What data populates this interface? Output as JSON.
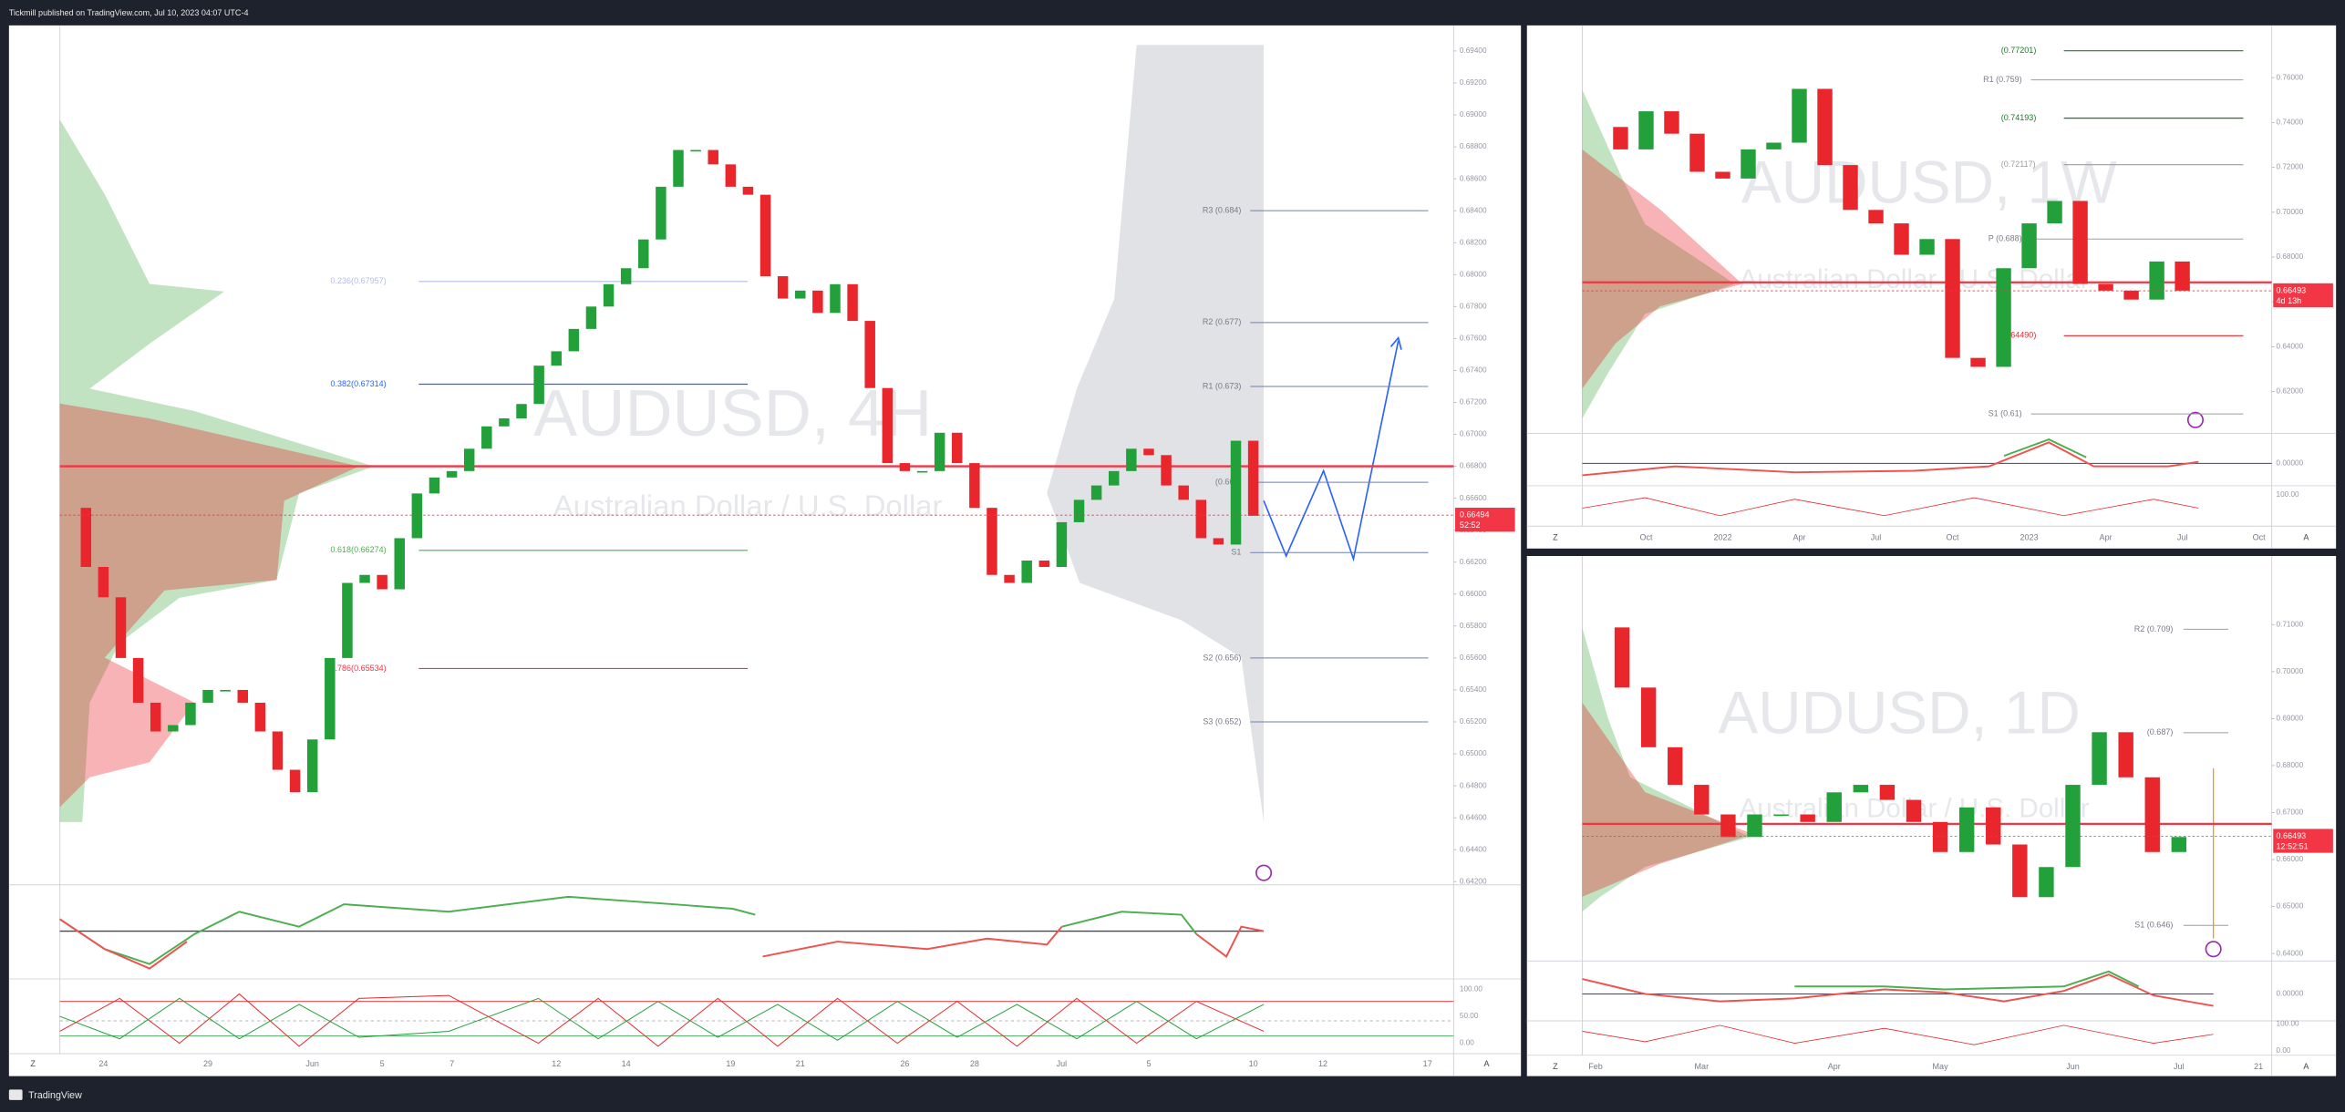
{
  "header": {
    "title": "Tickmill published on TradingView.com, Jul 10, 2023 04:07 UTC-4"
  },
  "footer": {
    "brand": "TradingView"
  },
  "controls": {
    "zoom": "Z",
    "auto": "A"
  },
  "chart_data": [
    {
      "type": "candlestick",
      "title": "AUDUSD, 4H",
      "subtitle": "Australian Dollar / U.S. Dollar",
      "up_color": "#22a03a",
      "down_color": "#e8262c",
      "categories": [
        null,
        null,
        "24",
        null,
        null,
        null,
        null,
        null,
        "29",
        null,
        null,
        null,
        null,
        null,
        "Jun",
        null,
        null,
        null,
        "5",
        null,
        null,
        null,
        "7",
        null,
        null,
        null,
        null,
        null,
        "12",
        null,
        null,
        null,
        "14",
        null,
        null,
        null,
        null,
        null,
        "19",
        null,
        null,
        null,
        "21",
        null,
        null,
        null,
        null,
        null,
        "26",
        null,
        null,
        null,
        "28",
        null,
        null,
        null,
        null,
        "Jul",
        null,
        null,
        null,
        null,
        "5",
        null,
        null,
        null,
        null,
        null,
        "10",
        null,
        null,
        null,
        "12",
        null,
        null,
        null,
        null,
        null,
        "17",
        null
      ],
      "values": [
        0.6654,
        0.6617,
        0.6598,
        0.656,
        0.6532,
        0.6514,
        0.6518,
        0.6532,
        0.654,
        0.654,
        0.6532,
        0.6514,
        0.649,
        0.6476,
        0.6509,
        0.656,
        0.6607,
        0.6612,
        0.6603,
        0.6635,
        0.6663,
        0.6673,
        0.6677,
        0.6691,
        0.6705,
        0.671,
        0.6719,
        0.6743,
        0.6752,
        0.6766,
        0.678,
        0.6794,
        0.6804,
        0.6822,
        0.6855,
        0.6878,
        0.6878,
        0.6869,
        0.6855,
        0.685,
        0.6799,
        0.6785,
        0.679,
        0.6776,
        0.6794,
        0.6771,
        0.6729,
        0.6682,
        0.6677,
        0.6677,
        0.6701,
        0.6682,
        0.6654,
        0.6612,
        0.6607,
        0.6621,
        0.6617,
        0.6645,
        0.6659,
        0.6668,
        0.6677,
        0.6691,
        0.6687,
        0.6668,
        0.6659,
        0.6635,
        0.6631,
        0.6696,
        0.6649,
        null,
        null,
        null,
        null,
        null,
        null,
        null,
        null,
        null,
        null,
        null
      ],
      "ylim": [
        0.6418,
        0.6956
      ],
      "yticks": [
        {
          "value": 0.642,
          "label": "0.64200"
        },
        {
          "value": 0.644,
          "label": "0.64400"
        },
        {
          "value": 0.646,
          "label": "0.64600"
        },
        {
          "value": 0.648,
          "label": "0.64800"
        },
        {
          "value": 0.65,
          "label": "0.65000"
        },
        {
          "value": 0.652,
          "label": "0.65200"
        },
        {
          "value": 0.654,
          "label": "0.65400"
        },
        {
          "value": 0.656,
          "label": "0.65600"
        },
        {
          "value": 0.658,
          "label": "0.65800"
        },
        {
          "value": 0.66,
          "label": "0.66000"
        },
        {
          "value": 0.662,
          "label": "0.66200"
        },
        {
          "value": 0.664,
          "label": "0.66400"
        },
        {
          "value": 0.666,
          "label": "0.66600"
        },
        {
          "value": 0.668,
          "label": "0.66800"
        },
        {
          "value": 0.67,
          "label": "0.67000"
        },
        {
          "value": 0.672,
          "label": "0.67200"
        },
        {
          "value": 0.674,
          "label": "0.67400"
        },
        {
          "value": 0.676,
          "label": "0.67600"
        },
        {
          "value": 0.678,
          "label": "0.67800"
        },
        {
          "value": 0.68,
          "label": "0.68000"
        },
        {
          "value": 0.682,
          "label": "0.68200"
        },
        {
          "value": 0.684,
          "label": "0.68400"
        },
        {
          "value": 0.686,
          "label": "0.68600"
        },
        {
          "value": 0.688,
          "label": "0.68800"
        },
        {
          "value": 0.69,
          "label": "0.69000"
        },
        {
          "value": 0.692,
          "label": "0.69200"
        },
        {
          "value": 0.694,
          "label": "0.69400"
        }
      ],
      "grid": false,
      "pivots": [
        {
          "label": "R3 (0.684)",
          "value": 0.684,
          "color": "#6f7fb0"
        },
        {
          "label": "R2 (0.677)",
          "value": 0.677,
          "color": "#6f7fb0"
        },
        {
          "label": "R1 (0.673)",
          "value": 0.673,
          "color": "#6f7fb0"
        },
        {
          "label": "(0.667)",
          "value": 0.667,
          "color": "#6f7fb0"
        },
        {
          "label": "S1",
          "value": 0.6626,
          "color": "#6f7fb0"
        },
        {
          "label": "S2 (0.656)",
          "value": 0.656,
          "color": "#6f7fb0"
        },
        {
          "label": "S3 (0.652)",
          "value": 0.652,
          "color": "#6f7fb0"
        }
      ],
      "fibs": [
        {
          "label": "0.236(0.67957)",
          "value": 0.67957,
          "color": "#b4bce6"
        },
        {
          "label": "0.382(0.67314)",
          "value": 0.67314,
          "color": "#2962ff"
        },
        {
          "label": "0.618(0.66274)",
          "value": 0.66274,
          "color": "#4caf50"
        },
        {
          "label": "0.786(0.65534)",
          "value": 0.65534,
          "color": "#f23645"
        }
      ],
      "hline": 0.668,
      "hline_color": "#f23645",
      "last_price": 0.66494,
      "countdown": "52:52",
      "indicator_labels": [
        "100.00",
        "50.00",
        "0.00"
      ]
    },
    {
      "type": "candlestick",
      "title": "AUDUSD, 1W",
      "subtitle": "Australian Dollar / U.S. Dollar",
      "up_color": "#22a03a",
      "down_color": "#e8262c",
      "categories": [
        null,
        null,
        "Oct",
        null,
        null,
        "2022",
        null,
        null,
        "Apr",
        null,
        null,
        "Jul",
        null,
        null,
        "Oct",
        null,
        null,
        "2023",
        null,
        null,
        "Apr",
        null,
        null,
        "Jul",
        null,
        null,
        "Oct"
      ],
      "values": [
        0.738,
        0.728,
        0.745,
        0.735,
        0.718,
        0.715,
        0.728,
        0.731,
        0.755,
        0.721,
        0.701,
        0.695,
        0.681,
        0.688,
        0.635,
        0.631,
        0.675,
        0.695,
        0.705,
        0.668,
        0.665,
        0.661,
        0.678,
        0.665,
        null,
        null,
        null
      ],
      "ylim": [
        0.6013,
        0.7833
      ],
      "yticks": [
        {
          "value": 0.62,
          "label": "0.62000"
        },
        {
          "value": 0.64,
          "label": "0.64000"
        },
        {
          "value": 0.66,
          "label": "0.66000"
        },
        {
          "value": 0.68,
          "label": "0.68000"
        },
        {
          "value": 0.7,
          "label": "0.70000"
        },
        {
          "value": 0.72,
          "label": "0.72000"
        },
        {
          "value": 0.74,
          "label": "0.74000"
        },
        {
          "value": 0.76,
          "label": "0.76000"
        }
      ],
      "grid": false,
      "pivots": [
        {
          "label": "R1 (0.759)",
          "value": 0.759,
          "color": "#9e9e9e"
        },
        {
          "label": "P (0.688)",
          "value": 0.688,
          "color": "#9e9e9e"
        },
        {
          "label": "S1 (0.61)",
          "value": 0.61,
          "color": "#9e9e9e"
        }
      ],
      "fibs": [
        {
          "label": "(0.77201)",
          "value": 0.77201,
          "color": "#1b7a2b"
        },
        {
          "label": "(0.74193)",
          "value": 0.74193,
          "color": "#1b7a2b"
        },
        {
          "label": "(0.72117)",
          "value": 0.72117,
          "color": "#9e9e9e"
        },
        {
          "label": "(0.64490)",
          "value": 0.6449,
          "color": "#e8262c"
        }
      ],
      "hline": 0.6687,
      "hline_color": "#f23645",
      "last_price": 0.66493,
      "countdown": "4d 13h",
      "indicator_labels": [
        "0.00000",
        "100.00"
      ]
    },
    {
      "type": "candlestick",
      "title": "AUDUSD, 1D",
      "subtitle": "Australian Dollar / U.S. Dollar",
      "up_color": "#22a03a",
      "down_color": "#e8262c",
      "categories": [
        "Feb",
        null,
        null,
        null,
        "Mar",
        null,
        null,
        null,
        null,
        "Apr",
        null,
        null,
        null,
        "May",
        null,
        null,
        null,
        null,
        "Jun",
        null,
        null,
        null,
        "Jul",
        null,
        null,
        "21"
      ],
      "values": [
        0.7094,
        0.6966,
        0.6839,
        0.6759,
        0.6696,
        0.6648,
        0.6696,
        0.6696,
        0.668,
        0.6743,
        0.6759,
        0.6727,
        0.668,
        0.6616,
        0.6711,
        0.6632,
        0.652,
        0.6584,
        0.6759,
        0.6871,
        0.6775,
        0.6616,
        0.6648,
        null,
        null,
        null
      ],
      "ylim": [
        0.6384,
        0.7246
      ],
      "yticks": [
        {
          "value": 0.64,
          "label": "0.64000"
        },
        {
          "value": 0.65,
          "label": "0.65000"
        },
        {
          "value": 0.66,
          "label": "0.66000"
        },
        {
          "value": 0.67,
          "label": "0.67000"
        },
        {
          "value": 0.68,
          "label": "0.68000"
        },
        {
          "value": 0.69,
          "label": "0.69000"
        },
        {
          "value": 0.7,
          "label": "0.70000"
        },
        {
          "value": 0.71,
          "label": "0.71000"
        }
      ],
      "grid": false,
      "pivots": [
        {
          "label": "R2 (0.709)",
          "value": 0.709,
          "color": "#9e9e9e"
        },
        {
          "label": "(0.687)",
          "value": 0.687,
          "color": "#9e9e9e"
        },
        {
          "label": "S1 (0.646)",
          "value": 0.646,
          "color": "#9e9e9e"
        }
      ],
      "hline": 0.6676,
      "hline_color": "#f23645",
      "last_price": 0.66493,
      "countdown": "12:52:51",
      "indicator_labels": [
        "0.00000",
        "100.00",
        "0.00"
      ]
    }
  ]
}
